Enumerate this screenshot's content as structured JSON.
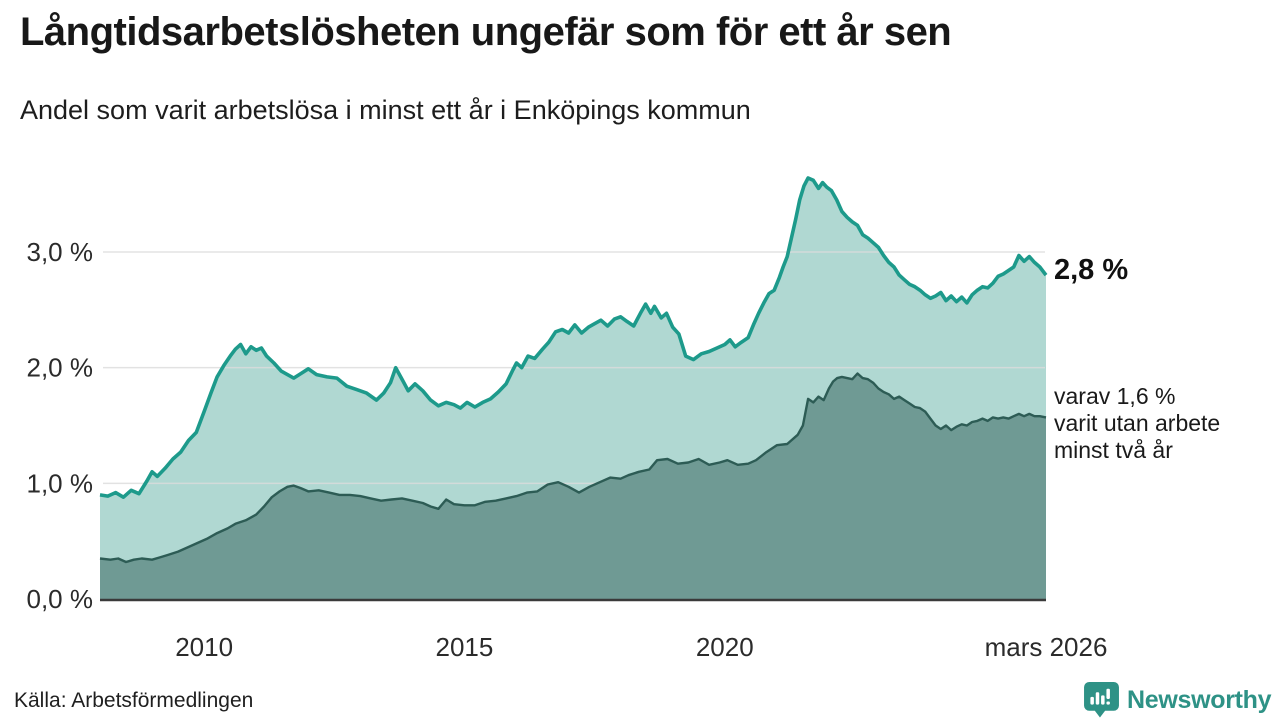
{
  "chart_data": {
    "type": "area",
    "title": "Långtidsarbetslösheten ungefär som för ett år sen",
    "subtitle": "Andel som varit arbetslösa i minst ett år i Enköpings kommun",
    "xlabel": "",
    "ylabel": "",
    "unit": "%",
    "grid": true,
    "x_axis": {
      "range": [
        2008.0,
        2026.17
      ],
      "ticks": [
        {
          "label": "2010",
          "year": 2010
        },
        {
          "label": "2015",
          "year": 2015
        },
        {
          "label": "2020",
          "year": 2020
        },
        {
          "label": "mars 2026",
          "year": 2026.17
        }
      ]
    },
    "y_axis": {
      "range": [
        0,
        3.8
      ],
      "ticks": [
        {
          "label": "0,0 %",
          "value": 0
        },
        {
          "label": "1,0 %",
          "value": 1
        },
        {
          "label": "2,0 %",
          "value": 2
        },
        {
          "label": "3,0 %",
          "value": 3
        }
      ]
    },
    "colors": {
      "line_total": "#1d9a8b",
      "fill_total": "#b0d8d2",
      "line_two_years": "#2d5c55",
      "fill_two_years": "#6f9a94",
      "gridline": "#dcdcdc",
      "axis": "#3a3a3a"
    },
    "series": [
      {
        "name": "arbetslösa minst ett år",
        "end_value": "2,8 %",
        "points": [
          [
            2008.0,
            0.9
          ],
          [
            2008.15,
            0.89
          ],
          [
            2008.3,
            0.92
          ],
          [
            2008.45,
            0.88
          ],
          [
            2008.6,
            0.94
          ],
          [
            2008.75,
            0.91
          ],
          [
            2008.9,
            1.02
          ],
          [
            2009.0,
            1.1
          ],
          [
            2009.1,
            1.06
          ],
          [
            2009.25,
            1.13
          ],
          [
            2009.4,
            1.21
          ],
          [
            2009.55,
            1.27
          ],
          [
            2009.7,
            1.37
          ],
          [
            2009.85,
            1.44
          ],
          [
            2010.0,
            1.62
          ],
          [
            2010.13,
            1.78
          ],
          [
            2010.25,
            1.92
          ],
          [
            2010.38,
            2.02
          ],
          [
            2010.5,
            2.1
          ],
          [
            2010.6,
            2.16
          ],
          [
            2010.7,
            2.2
          ],
          [
            2010.8,
            2.12
          ],
          [
            2010.9,
            2.18
          ],
          [
            2011.0,
            2.15
          ],
          [
            2011.1,
            2.17
          ],
          [
            2011.2,
            2.1
          ],
          [
            2011.34,
            2.04
          ],
          [
            2011.48,
            1.97
          ],
          [
            2011.6,
            1.94
          ],
          [
            2011.72,
            1.91
          ],
          [
            2011.86,
            1.95
          ],
          [
            2012.0,
            1.99
          ],
          [
            2012.16,
            1.94
          ],
          [
            2012.36,
            1.92
          ],
          [
            2012.55,
            1.91
          ],
          [
            2012.74,
            1.84
          ],
          [
            2012.93,
            1.81
          ],
          [
            2013.12,
            1.78
          ],
          [
            2013.31,
            1.72
          ],
          [
            2013.45,
            1.78
          ],
          [
            2013.58,
            1.87
          ],
          [
            2013.68,
            2.0
          ],
          [
            2013.8,
            1.9
          ],
          [
            2013.92,
            1.8
          ],
          [
            2014.05,
            1.86
          ],
          [
            2014.2,
            1.8
          ],
          [
            2014.35,
            1.72
          ],
          [
            2014.5,
            1.67
          ],
          [
            2014.65,
            1.7
          ],
          [
            2014.8,
            1.68
          ],
          [
            2014.92,
            1.65
          ],
          [
            2015.05,
            1.7
          ],
          [
            2015.2,
            1.66
          ],
          [
            2015.35,
            1.7
          ],
          [
            2015.5,
            1.73
          ],
          [
            2015.65,
            1.79
          ],
          [
            2015.8,
            1.86
          ],
          [
            2015.92,
            1.97
          ],
          [
            2016.0,
            2.04
          ],
          [
            2016.1,
            2.0
          ],
          [
            2016.22,
            2.1
          ],
          [
            2016.35,
            2.08
          ],
          [
            2016.5,
            2.16
          ],
          [
            2016.62,
            2.22
          ],
          [
            2016.75,
            2.31
          ],
          [
            2016.88,
            2.33
          ],
          [
            2017.0,
            2.3
          ],
          [
            2017.12,
            2.37
          ],
          [
            2017.25,
            2.3
          ],
          [
            2017.38,
            2.35
          ],
          [
            2017.5,
            2.38
          ],
          [
            2017.62,
            2.41
          ],
          [
            2017.75,
            2.36
          ],
          [
            2017.88,
            2.42
          ],
          [
            2018.0,
            2.44
          ],
          [
            2018.12,
            2.4
          ],
          [
            2018.25,
            2.36
          ],
          [
            2018.38,
            2.47
          ],
          [
            2018.48,
            2.55
          ],
          [
            2018.58,
            2.47
          ],
          [
            2018.65,
            2.53
          ],
          [
            2018.78,
            2.43
          ],
          [
            2018.88,
            2.47
          ],
          [
            2019.0,
            2.35
          ],
          [
            2019.12,
            2.29
          ],
          [
            2019.25,
            2.1
          ],
          [
            2019.4,
            2.07
          ],
          [
            2019.55,
            2.12
          ],
          [
            2019.7,
            2.14
          ],
          [
            2019.85,
            2.17
          ],
          [
            2020.0,
            2.2
          ],
          [
            2020.1,
            2.24
          ],
          [
            2020.2,
            2.18
          ],
          [
            2020.32,
            2.22
          ],
          [
            2020.45,
            2.26
          ],
          [
            2020.55,
            2.37
          ],
          [
            2020.65,
            2.47
          ],
          [
            2020.75,
            2.56
          ],
          [
            2020.85,
            2.64
          ],
          [
            2020.95,
            2.67
          ],
          [
            2021.05,
            2.78
          ],
          [
            2021.12,
            2.87
          ],
          [
            2021.2,
            2.96
          ],
          [
            2021.28,
            3.12
          ],
          [
            2021.36,
            3.28
          ],
          [
            2021.44,
            3.45
          ],
          [
            2021.52,
            3.57
          ],
          [
            2021.6,
            3.64
          ],
          [
            2021.7,
            3.62
          ],
          [
            2021.8,
            3.55
          ],
          [
            2021.88,
            3.6
          ],
          [
            2021.96,
            3.56
          ],
          [
            2022.05,
            3.53
          ],
          [
            2022.15,
            3.45
          ],
          [
            2022.25,
            3.35
          ],
          [
            2022.35,
            3.3
          ],
          [
            2022.45,
            3.26
          ],
          [
            2022.55,
            3.23
          ],
          [
            2022.65,
            3.15
          ],
          [
            2022.75,
            3.12
          ],
          [
            2022.85,
            3.08
          ],
          [
            2022.95,
            3.04
          ],
          [
            2023.05,
            2.97
          ],
          [
            2023.15,
            2.91
          ],
          [
            2023.25,
            2.87
          ],
          [
            2023.35,
            2.8
          ],
          [
            2023.45,
            2.76
          ],
          [
            2023.55,
            2.72
          ],
          [
            2023.65,
            2.7
          ],
          [
            2023.75,
            2.67
          ],
          [
            2023.85,
            2.63
          ],
          [
            2023.95,
            2.6
          ],
          [
            2024.05,
            2.62
          ],
          [
            2024.15,
            2.65
          ],
          [
            2024.25,
            2.58
          ],
          [
            2024.35,
            2.62
          ],
          [
            2024.45,
            2.57
          ],
          [
            2024.55,
            2.61
          ],
          [
            2024.65,
            2.56
          ],
          [
            2024.75,
            2.63
          ],
          [
            2024.85,
            2.67
          ],
          [
            2024.95,
            2.7
          ],
          [
            2025.05,
            2.69
          ],
          [
            2025.15,
            2.73
          ],
          [
            2025.25,
            2.79
          ],
          [
            2025.35,
            2.81
          ],
          [
            2025.45,
            2.84
          ],
          [
            2025.55,
            2.87
          ],
          [
            2025.65,
            2.97
          ],
          [
            2025.75,
            2.92
          ],
          [
            2025.85,
            2.96
          ],
          [
            2025.95,
            2.91
          ],
          [
            2026.05,
            2.87
          ],
          [
            2026.17,
            2.8
          ]
        ]
      },
      {
        "name": "varav varit utan arbete minst två år",
        "end_value": "1,6 %",
        "points": [
          [
            2008.0,
            0.35
          ],
          [
            2008.2,
            0.34
          ],
          [
            2008.35,
            0.35
          ],
          [
            2008.5,
            0.32
          ],
          [
            2008.65,
            0.34
          ],
          [
            2008.8,
            0.35
          ],
          [
            2009.0,
            0.34
          ],
          [
            2009.15,
            0.36
          ],
          [
            2009.3,
            0.38
          ],
          [
            2009.5,
            0.41
          ],
          [
            2009.7,
            0.45
          ],
          [
            2009.85,
            0.48
          ],
          [
            2010.05,
            0.52
          ],
          [
            2010.25,
            0.57
          ],
          [
            2010.45,
            0.61
          ],
          [
            2010.6,
            0.65
          ],
          [
            2010.8,
            0.68
          ],
          [
            2011.0,
            0.73
          ],
          [
            2011.15,
            0.8
          ],
          [
            2011.3,
            0.88
          ],
          [
            2011.45,
            0.93
          ],
          [
            2011.6,
            0.97
          ],
          [
            2011.72,
            0.98
          ],
          [
            2011.85,
            0.96
          ],
          [
            2012.0,
            0.93
          ],
          [
            2012.2,
            0.94
          ],
          [
            2012.4,
            0.92
          ],
          [
            2012.6,
            0.9
          ],
          [
            2012.8,
            0.9
          ],
          [
            2013.0,
            0.89
          ],
          [
            2013.2,
            0.87
          ],
          [
            2013.4,
            0.85
          ],
          [
            2013.6,
            0.86
          ],
          [
            2013.8,
            0.87
          ],
          [
            2014.0,
            0.85
          ],
          [
            2014.2,
            0.83
          ],
          [
            2014.35,
            0.8
          ],
          [
            2014.5,
            0.78
          ],
          [
            2014.65,
            0.86
          ],
          [
            2014.8,
            0.82
          ],
          [
            2015.0,
            0.81
          ],
          [
            2015.2,
            0.81
          ],
          [
            2015.4,
            0.84
          ],
          [
            2015.6,
            0.85
          ],
          [
            2015.8,
            0.87
          ],
          [
            2016.0,
            0.89
          ],
          [
            2016.2,
            0.92
          ],
          [
            2016.4,
            0.93
          ],
          [
            2016.6,
            0.99
          ],
          [
            2016.8,
            1.01
          ],
          [
            2017.0,
            0.97
          ],
          [
            2017.2,
            0.92
          ],
          [
            2017.4,
            0.97
          ],
          [
            2017.6,
            1.01
          ],
          [
            2017.8,
            1.05
          ],
          [
            2018.0,
            1.04
          ],
          [
            2018.15,
            1.07
          ],
          [
            2018.35,
            1.1
          ],
          [
            2018.55,
            1.12
          ],
          [
            2018.7,
            1.2
          ],
          [
            2018.9,
            1.21
          ],
          [
            2019.1,
            1.17
          ],
          [
            2019.3,
            1.18
          ],
          [
            2019.5,
            1.21
          ],
          [
            2019.7,
            1.16
          ],
          [
            2019.9,
            1.18
          ],
          [
            2020.05,
            1.2
          ],
          [
            2020.25,
            1.16
          ],
          [
            2020.45,
            1.17
          ],
          [
            2020.6,
            1.2
          ],
          [
            2020.8,
            1.27
          ],
          [
            2021.0,
            1.33
          ],
          [
            2021.2,
            1.34
          ],
          [
            2021.4,
            1.42
          ],
          [
            2021.5,
            1.5
          ],
          [
            2021.6,
            1.73
          ],
          [
            2021.7,
            1.7
          ],
          [
            2021.8,
            1.75
          ],
          [
            2021.9,
            1.72
          ],
          [
            2022.0,
            1.82
          ],
          [
            2022.08,
            1.88
          ],
          [
            2022.16,
            1.91
          ],
          [
            2022.25,
            1.92
          ],
          [
            2022.35,
            1.91
          ],
          [
            2022.45,
            1.9
          ],
          [
            2022.55,
            1.95
          ],
          [
            2022.65,
            1.91
          ],
          [
            2022.75,
            1.9
          ],
          [
            2022.85,
            1.87
          ],
          [
            2022.95,
            1.82
          ],
          [
            2023.05,
            1.79
          ],
          [
            2023.15,
            1.77
          ],
          [
            2023.25,
            1.73
          ],
          [
            2023.35,
            1.75
          ],
          [
            2023.45,
            1.72
          ],
          [
            2023.55,
            1.69
          ],
          [
            2023.65,
            1.66
          ],
          [
            2023.75,
            1.65
          ],
          [
            2023.85,
            1.62
          ],
          [
            2023.95,
            1.56
          ],
          [
            2024.05,
            1.5
          ],
          [
            2024.15,
            1.47
          ],
          [
            2024.25,
            1.5
          ],
          [
            2024.35,
            1.46
          ],
          [
            2024.45,
            1.49
          ],
          [
            2024.55,
            1.51
          ],
          [
            2024.65,
            1.5
          ],
          [
            2024.75,
            1.53
          ],
          [
            2024.85,
            1.54
          ],
          [
            2024.95,
            1.56
          ],
          [
            2025.05,
            1.54
          ],
          [
            2025.15,
            1.57
          ],
          [
            2025.25,
            1.56
          ],
          [
            2025.35,
            1.57
          ],
          [
            2025.45,
            1.56
          ],
          [
            2025.55,
            1.58
          ],
          [
            2025.65,
            1.6
          ],
          [
            2025.75,
            1.58
          ],
          [
            2025.85,
            1.6
          ],
          [
            2025.95,
            1.58
          ],
          [
            2026.05,
            1.58
          ],
          [
            2026.17,
            1.57
          ]
        ]
      }
    ],
    "end_labels": {
      "primary": "2,8 %",
      "secondary_lines": [
        "varav 1,6 %",
        "varit utan arbete",
        "minst två år"
      ]
    }
  },
  "footer": {
    "source": "Källa: Arbetsförmedlingen",
    "brand": "Newsworthy"
  }
}
